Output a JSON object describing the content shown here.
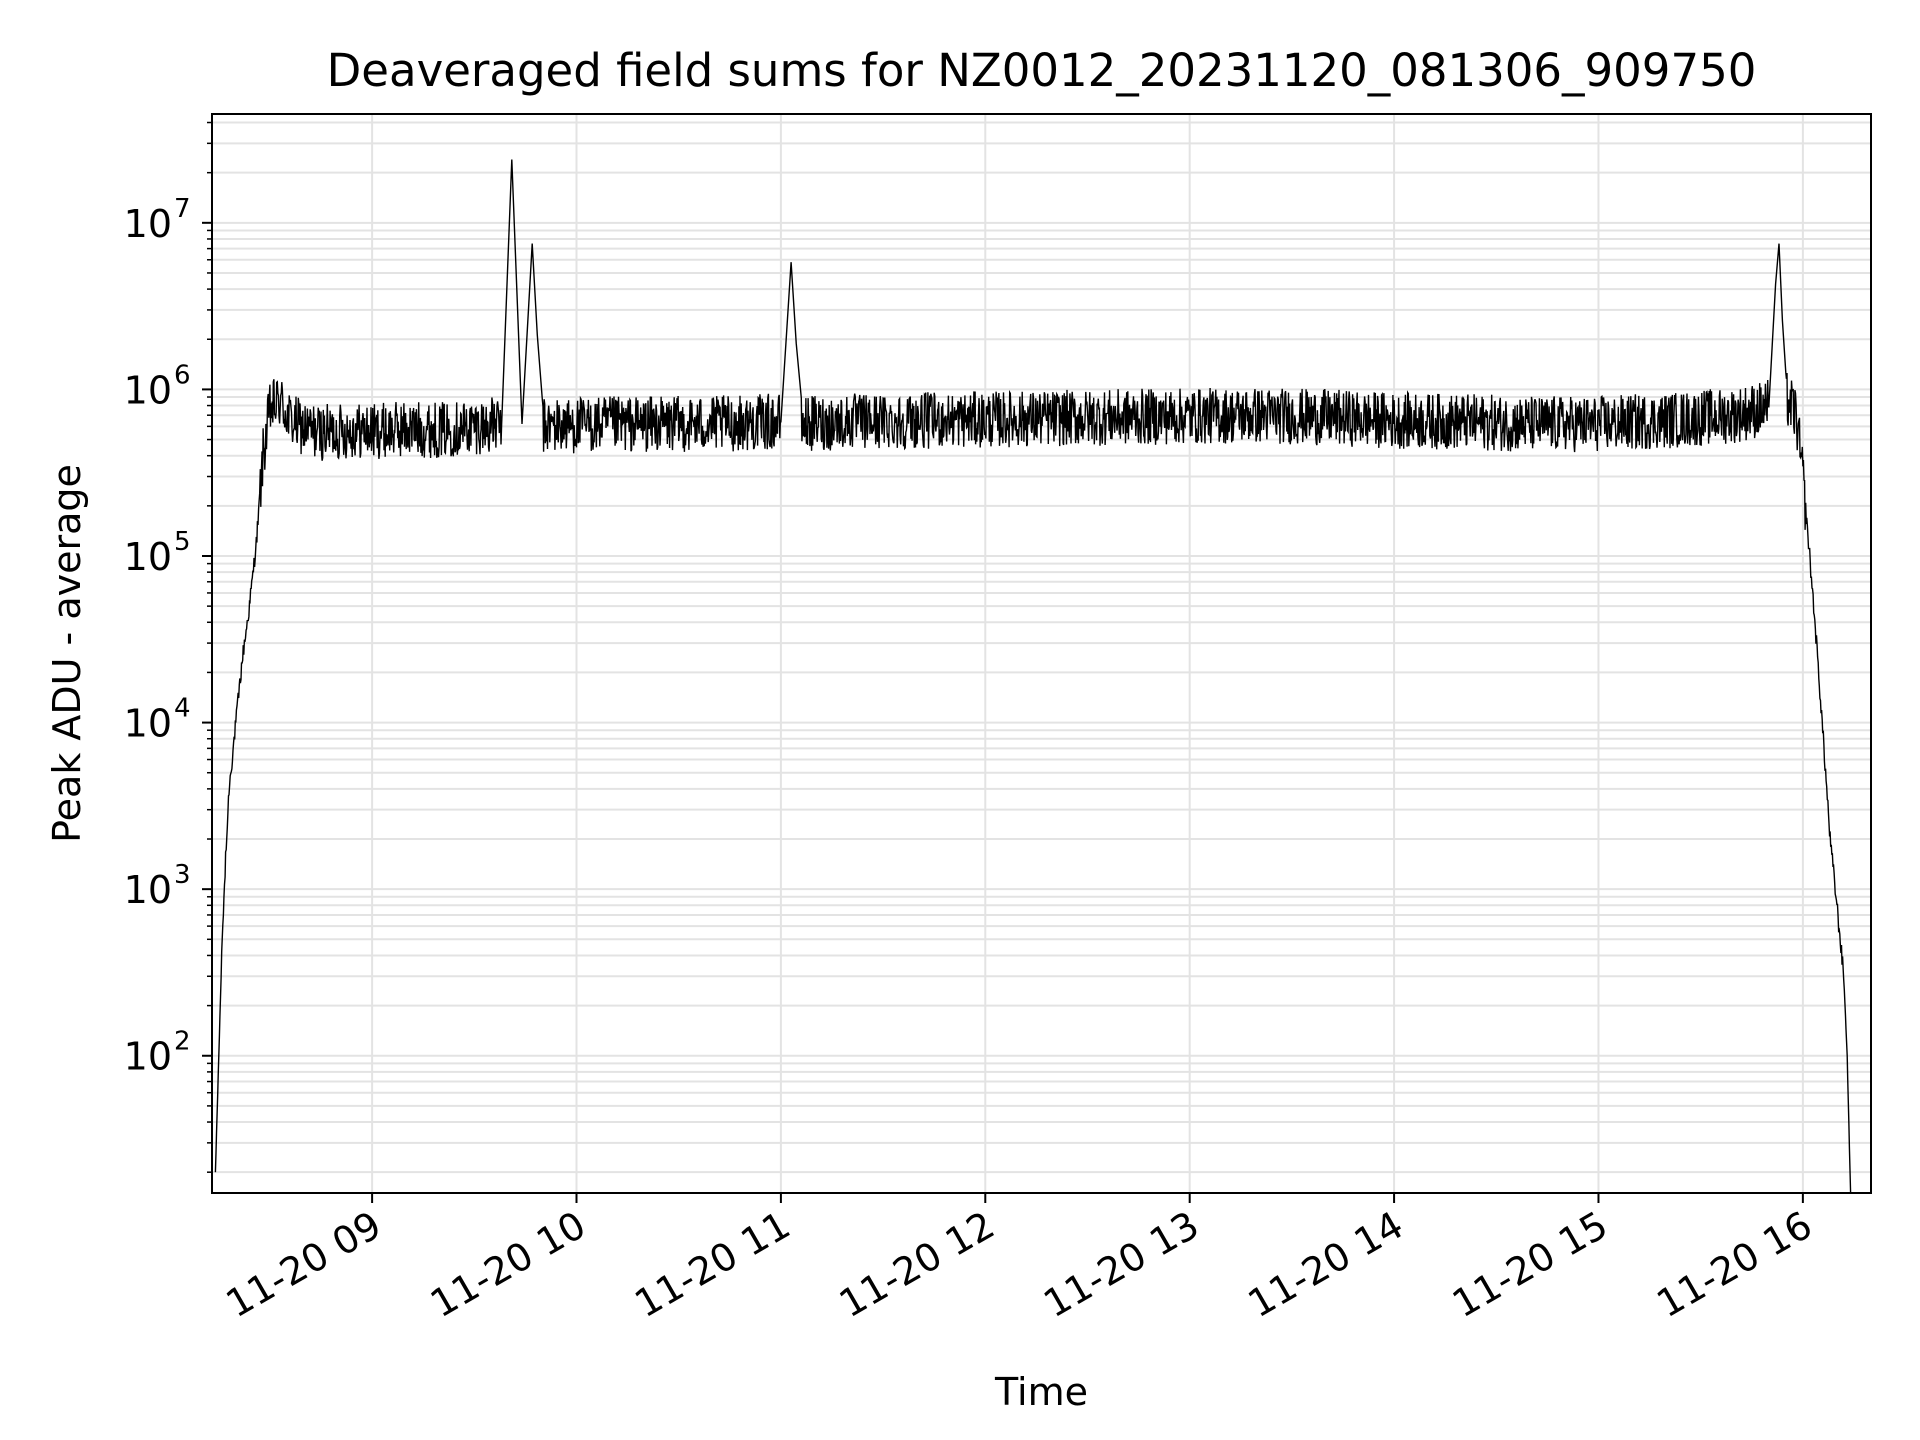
{
  "chart_data": {
    "type": "line",
    "title": "Deaveraged field sums for NZ0012_20231120_081306_909750",
    "xlabel": "Time",
    "ylabel": "Peak ADU - average",
    "yscale": "log",
    "ylim": [
      15,
      45000000
    ],
    "xlim": [
      "2023-11-20 08:13",
      "2023-11-20 16:20"
    ],
    "grid": true,
    "line_color": "#000000",
    "grid_color": "#e3e3e3",
    "x_ticks": [
      {
        "value": "2023-11-20 09:00",
        "label": "11-20 09"
      },
      {
        "value": "2023-11-20 10:00",
        "label": "11-20 10"
      },
      {
        "value": "2023-11-20 11:00",
        "label": "11-20 11"
      },
      {
        "value": "2023-11-20 12:00",
        "label": "11-20 12"
      },
      {
        "value": "2023-11-20 13:00",
        "label": "11-20 13"
      },
      {
        "value": "2023-11-20 14:00",
        "label": "11-20 14"
      },
      {
        "value": "2023-11-20 15:00",
        "label": "11-20 15"
      },
      {
        "value": "2023-11-20 16:00",
        "label": "11-20 16"
      }
    ],
    "y_ticks": [
      {
        "value": 100,
        "base": "10",
        "exp": "2"
      },
      {
        "value": 1000,
        "base": "10",
        "exp": "3"
      },
      {
        "value": 10000,
        "base": "10",
        "exp": "4"
      },
      {
        "value": 100000,
        "base": "10",
        "exp": "5"
      },
      {
        "value": 1000000,
        "base": "10",
        "exp": "6"
      },
      {
        "value": 10000000,
        "base": "10",
        "exp": "7"
      }
    ],
    "series": [
      {
        "x": [
          "2023-11-20 08:14",
          "2023-11-20 08:15",
          "2023-11-20 08:16",
          "2023-11-20 08:17",
          "2023-11-20 08:18",
          "2023-11-20 08:20",
          "2023-11-20 08:22",
          "2023-11-20 08:24",
          "2023-11-20 08:26",
          "2023-11-20 08:28",
          "2023-11-20 08:30",
          "2023-11-20 08:33",
          "2023-11-20 08:36",
          "2023-11-20 08:40",
          "2023-11-20 08:45",
          "2023-11-20 08:50",
          "2023-11-20 08:55",
          "2023-11-20 09:00",
          "2023-11-20 09:10",
          "2023-11-20 09:20",
          "2023-11-20 09:30",
          "2023-11-20 09:38",
          "2023-11-20 09:41",
          "2023-11-20 09:44",
          "2023-11-20 09:47",
          "2023-11-20 09:50",
          "2023-11-20 10:00",
          "2023-11-20 10:20",
          "2023-11-20 10:40",
          "2023-11-20 11:00",
          "2023-11-20 11:03",
          "2023-11-20 11:06",
          "2023-11-20 11:20",
          "2023-11-20 11:40",
          "2023-11-20 12:00",
          "2023-11-20 12:20",
          "2023-11-20 12:40",
          "2023-11-20 13:00",
          "2023-11-20 13:20",
          "2023-11-20 13:40",
          "2023-11-20 14:00",
          "2023-11-20 14:20",
          "2023-11-20 14:40",
          "2023-11-20 15:00",
          "2023-11-20 15:20",
          "2023-11-20 15:40",
          "2023-11-20 15:50",
          "2023-11-20 15:52",
          "2023-11-20 15:53",
          "2023-11-20 15:55",
          "2023-11-20 15:58",
          "2023-11-20 16:00",
          "2023-11-20 16:02",
          "2023-11-20 16:04",
          "2023-11-20 16:06",
          "2023-11-20 16:08",
          "2023-11-20 16:10",
          "2023-11-20 16:12",
          "2023-11-20 16:13",
          "2023-11-20 16:14"
        ],
        "y": [
          20,
          100,
          500,
          1500,
          4000,
          10000,
          25000,
          50000,
          120000,
          400000,
          750000,
          850000,
          650000,
          580000,
          550000,
          560000,
          570000,
          560000,
          580000,
          570000,
          600000,
          610000,
          24000000,
          620000,
          7500000,
          600000,
          610000,
          620000,
          620000,
          640000,
          5800000,
          620000,
          640000,
          650000,
          660000,
          670000,
          680000,
          690000,
          700000,
          680000,
          650000,
          640000,
          620000,
          620000,
          650000,
          700000,
          780000,
          4300000,
          7500000,
          900000,
          700000,
          300000,
          100000,
          30000,
          8000,
          2000,
          800,
          300,
          100,
          15
        ]
      }
    ]
  }
}
